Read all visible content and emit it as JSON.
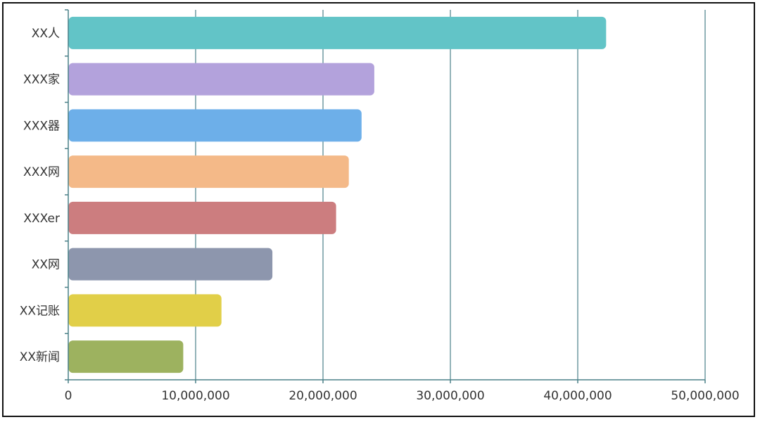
{
  "chart_data": {
    "type": "bar",
    "orientation": "horizontal",
    "title": "",
    "xlabel": "",
    "ylabel": "",
    "categories": [
      "XX人",
      "XXX家",
      "XXX器",
      "XXX网",
      "XXXer",
      "XX网",
      "XX记账",
      "XX新闻"
    ],
    "values": [
      42200000,
      24000000,
      23000000,
      22000000,
      21000000,
      16000000,
      12000000,
      9000000
    ],
    "colors": [
      "#62c4c7",
      "#b3a2dc",
      "#6dafe9",
      "#f4b988",
      "#cc7d7f",
      "#8d96ad",
      "#e1cf48",
      "#9db25f"
    ],
    "xlim": [
      0,
      50000000
    ],
    "xticks": [
      0,
      10000000,
      20000000,
      30000000,
      40000000,
      50000000
    ],
    "xtick_labels": [
      "0",
      "10,000,000",
      "20,000,000",
      "30,000,000",
      "40,000,000",
      "50,000,000"
    ],
    "grid": true,
    "axis_color": "#4a8088",
    "grid_color": "#4a8088"
  }
}
